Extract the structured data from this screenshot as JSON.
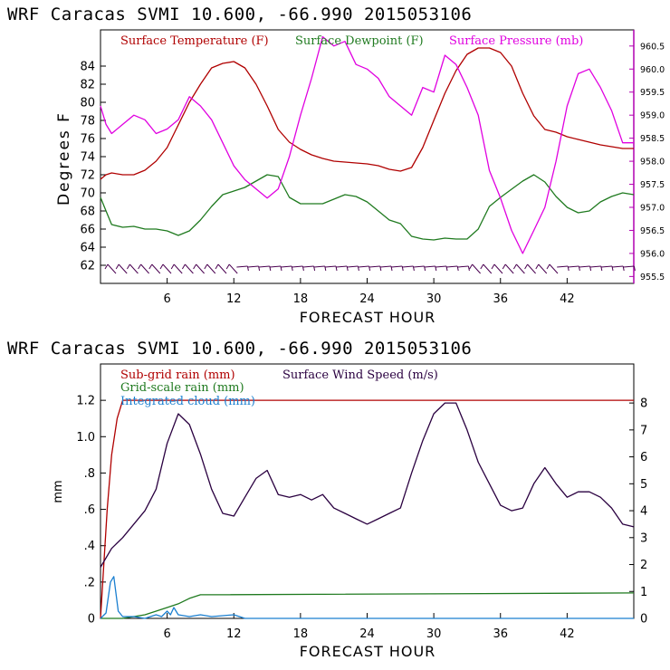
{
  "chart_data": [
    {
      "type": "line",
      "title": "WRF   Caracas SVMI  10.600, -66.990  2015053106",
      "xlabel": "FORECAST HOUR",
      "ylabel": "Degrees F",
      "x_ticks": [
        "6",
        "12",
        "18",
        "24",
        "30",
        "36",
        "42"
      ],
      "xlim": [
        0,
        48
      ],
      "ylim": [
        60,
        88
      ],
      "y_ticks": [
        "62",
        "64",
        "66",
        "68",
        "70",
        "72",
        "74",
        "76",
        "78",
        "80",
        "82",
        "84"
      ],
      "y2lim": [
        955.35,
        960.85
      ],
      "y2_ticks": [
        "955.5",
        "956.0",
        "956.5",
        "957.0",
        "957.5",
        "958.0",
        "958.5",
        "959.0",
        "959.5",
        "960.0",
        "960.5"
      ],
      "legend": [
        "Surface Temperature (F)",
        "Surface Dewpoint (F)",
        "Surface Pressure (mb)"
      ],
      "colors": {
        "temperature": "#b00000",
        "dewpoint": "#1f7a1f",
        "pressure": "#e000e0",
        "wind_barbs": "#4a0050",
        "axis": "#b000b0"
      },
      "series": [
        {
          "name": "Surface Temperature (F)",
          "axis": "left",
          "x": [
            0,
            0.5,
            1,
            2,
            3,
            4,
            5,
            6,
            7,
            8,
            9,
            10,
            11,
            12,
            13,
            14,
            15,
            16,
            17,
            18,
            19,
            20,
            21,
            22,
            23,
            24,
            25,
            26,
            27,
            28,
            29,
            30,
            31,
            32,
            33,
            34,
            35,
            36,
            37,
            38,
            39,
            40,
            41,
            42,
            43,
            44,
            45,
            46,
            47,
            48
          ],
          "y": [
            71.5,
            72,
            72.2,
            72,
            72,
            72.5,
            73.5,
            75,
            77.5,
            80,
            82,
            83.8,
            84.3,
            84.5,
            83.8,
            82,
            79.6,
            77,
            75.6,
            74.8,
            74.2,
            73.8,
            73.5,
            73.4,
            73.3,
            73.2,
            73,
            72.6,
            72.4,
            72.8,
            75,
            78,
            81,
            83.5,
            85.3,
            86,
            86,
            85.5,
            84,
            81,
            78.5,
            77,
            76.7,
            76.2,
            75.9,
            75.6,
            75.3,
            75.1,
            74.9,
            74.9
          ]
        },
        {
          "name": "Surface Dewpoint (F)",
          "axis": "left",
          "x": [
            0,
            0.5,
            1,
            2,
            3,
            4,
            5,
            6,
            7,
            8,
            9,
            10,
            11,
            12,
            13,
            14,
            15,
            16,
            17,
            18,
            19,
            20,
            21,
            22,
            23,
            24,
            25,
            26,
            27,
            28,
            29,
            30,
            31,
            32,
            33,
            34,
            35,
            36,
            37,
            38,
            39,
            40,
            41,
            42,
            43,
            44,
            45,
            46,
            47,
            48
          ],
          "y": [
            69.5,
            68,
            66.5,
            66.2,
            66.3,
            66,
            66,
            65.8,
            65.3,
            65.8,
            67,
            68.5,
            69.8,
            70.2,
            70.6,
            71.3,
            72,
            71.8,
            69.5,
            68.8,
            68.8,
            68.8,
            69.3,
            69.8,
            69.6,
            69,
            68,
            67,
            66.6,
            65.2,
            64.9,
            64.8,
            65,
            64.9,
            64.9,
            66,
            68.5,
            69.5,
            70.4,
            71.3,
            72,
            71.2,
            69.6,
            68.4,
            67.8,
            68,
            69,
            69.6,
            70,
            69.8
          ]
        },
        {
          "name": "Surface Pressure (mb)",
          "axis": "right",
          "x": [
            0,
            0.5,
            1,
            2,
            3,
            4,
            5,
            6,
            7,
            8,
            9,
            10,
            11,
            12,
            13,
            14,
            15,
            16,
            17,
            18,
            19,
            20,
            21,
            22,
            23,
            24,
            25,
            26,
            27,
            28,
            29,
            30,
            31,
            32,
            33,
            34,
            35,
            36,
            37,
            38,
            39,
            40,
            41,
            42,
            43,
            44,
            45,
            46,
            47,
            48
          ],
          "y": [
            959.2,
            958.8,
            958.6,
            958.8,
            959.0,
            958.9,
            958.6,
            958.7,
            958.9,
            959.4,
            959.2,
            958.9,
            958.4,
            957.9,
            957.6,
            957.4,
            957.2,
            957.4,
            958.1,
            959.0,
            959.8,
            960.7,
            960.5,
            960.6,
            960.1,
            960.0,
            959.8,
            959.4,
            959.2,
            959.0,
            959.6,
            959.5,
            960.3,
            960.1,
            959.6,
            959.0,
            957.8,
            957.2,
            956.5,
            956.0,
            956.5,
            957.0,
            958.0,
            959.2,
            959.9,
            960.0,
            959.6,
            959.1,
            958.4,
            958.4
          ]
        }
      ],
      "wind_barbs": "row along bottom of plot"
    },
    {
      "type": "line",
      "title": "WRF   Caracas SVMI  10.600, -66.990  2015053106",
      "xlabel": "FORECAST HOUR",
      "ylabel": "mm",
      "x_ticks": [
        "6",
        "12",
        "18",
        "24",
        "30",
        "36",
        "42"
      ],
      "xlim": [
        0,
        48
      ],
      "ylim": [
        0,
        1.4
      ],
      "y_ticks": [
        "0",
        ".2",
        ".4",
        ".6",
        ".8",
        "1.0",
        "1.2"
      ],
      "y2lim": [
        0,
        9.45
      ],
      "y2_ticks": [
        "0",
        "1",
        "2",
        "3",
        "4",
        "5",
        "6",
        "7",
        "8"
      ],
      "legend": [
        "Sub-grid rain (mm)",
        "Surface Wind Speed (m/s)",
        "Grid-scale rain (mm)",
        "Integrated cloud (mm)"
      ],
      "colors": {
        "subgrid": "#b00000",
        "wind": "#2a0040",
        "gridscale": "#1f7a1f",
        "cloud": "#1a7fd0"
      },
      "series": [
        {
          "name": "Sub-grid rain (mm)",
          "axis": "left",
          "x": [
            0,
            0.3,
            0.6,
            1,
            1.5,
            2,
            48
          ],
          "y": [
            0,
            0.3,
            0.6,
            0.9,
            1.1,
            1.2,
            1.2
          ]
        },
        {
          "name": "Surface Wind Speed (m/s)",
          "axis": "right",
          "x": [
            0,
            1,
            2,
            3,
            4,
            5,
            6,
            7,
            8,
            9,
            10,
            11,
            12,
            13,
            14,
            15,
            16,
            17,
            18,
            19,
            20,
            21,
            22,
            23,
            24,
            25,
            26,
            27,
            28,
            29,
            30,
            31,
            32,
            33,
            34,
            35,
            36,
            37,
            38,
            39,
            40,
            41,
            42,
            43,
            44,
            45,
            46,
            47,
            48
          ],
          "y": [
            1.9,
            2.6,
            3.0,
            3.5,
            4.0,
            4.8,
            6.5,
            7.6,
            7.2,
            6.1,
            4.8,
            3.9,
            3.8,
            4.5,
            5.2,
            5.5,
            4.6,
            4.5,
            4.6,
            4.4,
            4.6,
            4.1,
            3.9,
            3.7,
            3.5,
            3.7,
            3.9,
            4.1,
            5.4,
            6.6,
            7.6,
            8.0,
            8.0,
            7.0,
            5.8,
            5.0,
            4.2,
            4.0,
            4.1,
            5.0,
            5.6,
            5.0,
            4.5,
            4.7,
            4.7,
            4.5,
            4.1,
            3.5,
            3.4
          ]
        },
        {
          "name": "Grid-scale rain (mm)",
          "axis": "left",
          "x": [
            0,
            2,
            4,
            5,
            6,
            7,
            8,
            9,
            10,
            48
          ],
          "y": [
            0,
            0,
            0.02,
            0.04,
            0.06,
            0.08,
            0.11,
            0.13,
            0.13,
            0.14
          ]
        },
        {
          "name": "Integrated cloud (mm)",
          "axis": "left",
          "x": [
            0,
            0.5,
            0.9,
            1.2,
            1.6,
            2,
            3,
            4,
            5,
            5.5,
            6,
            6.3,
            6.6,
            7,
            8,
            9,
            10,
            11,
            12,
            13,
            48
          ],
          "y": [
            0,
            0.03,
            0.2,
            0.23,
            0.04,
            0.01,
            0.01,
            0.0,
            0.02,
            0.01,
            0.04,
            0.02,
            0.06,
            0.02,
            0.01,
            0.02,
            0.01,
            0.015,
            0.02,
            0,
            0
          ]
        }
      ]
    }
  ]
}
